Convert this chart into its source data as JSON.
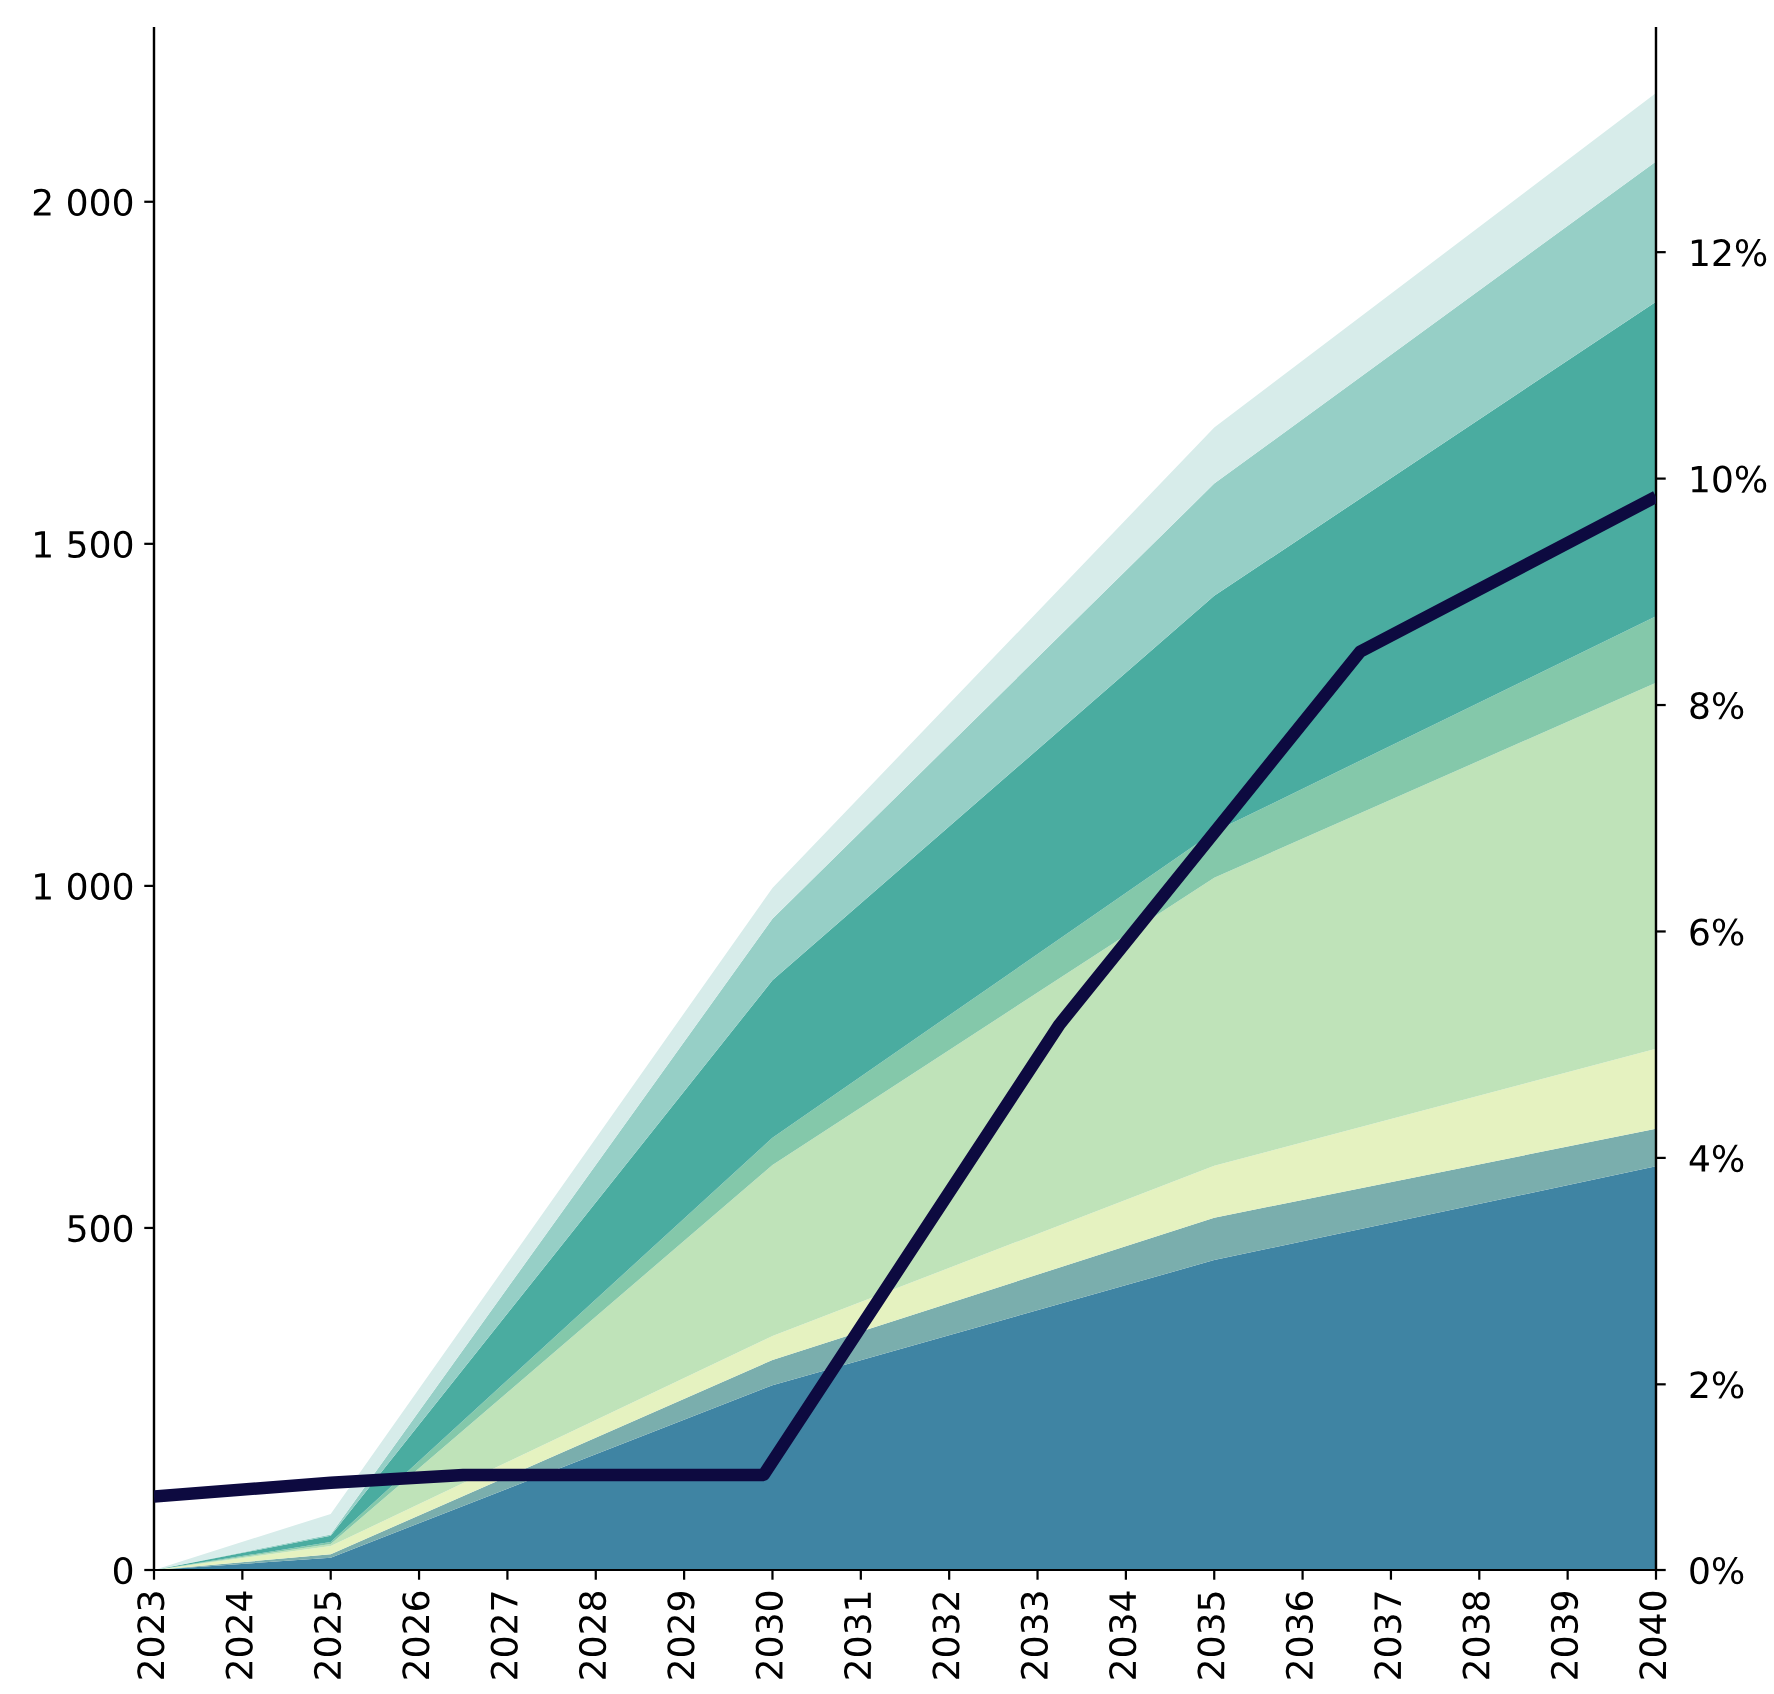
{
  "chart_data": {
    "type": "area",
    "stacked": true,
    "x": [
      2023,
      2025,
      2030,
      2035,
      2040
    ],
    "series": [
      {
        "color": "#3f84a3",
        "values": [
          0,
          18,
          270,
          453,
          590
        ]
      },
      {
        "color": "#7aaead",
        "values": [
          0,
          5,
          37,
          62,
          55
        ]
      },
      {
        "color": "#e5f2c0",
        "values": [
          0,
          12,
          35,
          76,
          117
        ]
      },
      {
        "color": "#bfe3b9",
        "values": [
          0,
          3,
          250,
          421,
          535
        ]
      },
      {
        "color": "#84c8aa",
        "values": [
          0,
          3,
          40,
          67,
          97
        ]
      },
      {
        "color": "#4aaca0",
        "values": [
          0,
          9,
          230,
          345,
          460
        ]
      },
      {
        "color": "#96cfc6",
        "values": [
          0,
          2,
          90,
          164,
          205
        ]
      },
      {
        "color": "#d7ecea",
        "values": [
          0,
          30,
          45,
          82,
          100
        ]
      },
      {
        "type": "line",
        "axis": "y2",
        "color": "#0d0a40",
        "x": [
          2023,
          2025,
          2026.5,
          2029.9,
          2033.25,
          2036.65,
          2040
        ],
        "values": [
          1.01,
          1.13,
          1.2,
          1.2,
          5.18,
          8.47,
          9.84
        ]
      }
    ],
    "xlim": [
      2023,
      2040
    ],
    "xticks": [
      2023,
      2024,
      2025,
      2026,
      2027,
      2028,
      2029,
      2030,
      2031,
      2032,
      2033,
      2034,
      2035,
      2036,
      2037,
      2038,
      2039,
      2040
    ],
    "ylim": [
      0,
      2254
    ],
    "yticks": [
      0,
      500,
      {
        "value": 1000,
        "label": "1 000"
      },
      {
        "value": 1500,
        "label": "1 500"
      },
      {
        "value": 2000,
        "label": "2 000"
      }
    ],
    "y2lim": [
      0.36,
      13.98
    ],
    "y2ticks": [
      {
        "value": 0.36,
        "label": "0%"
      },
      {
        "value": 2,
        "label": "2%"
      },
      {
        "value": 4,
        "label": "4%"
      },
      {
        "value": 6,
        "label": "6%"
      },
      {
        "value": 8,
        "label": "8%"
      },
      {
        "value": 10,
        "label": "10%"
      },
      {
        "value": 12,
        "label": "12%"
      }
    ],
    "grid": false,
    "legend": false
  }
}
